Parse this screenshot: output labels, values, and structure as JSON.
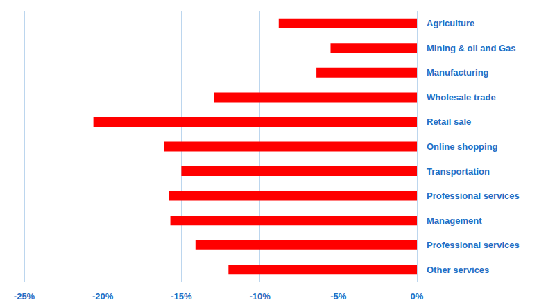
{
  "chart_data": {
    "type": "bar",
    "orientation": "horizontal",
    "categories": [
      "Agriculture",
      "Mining & oil and Gas",
      "Manufacturing",
      "Wholesale trade",
      "Retail sale",
      "Online shopping",
      "Transportation",
      "Professional services",
      "Management",
      "Professional services",
      "Other services"
    ],
    "values": [
      -8.8,
      -5.5,
      -6.4,
      -12.9,
      -20.6,
      -16.1,
      -15.0,
      -15.8,
      -15.7,
      -14.1,
      -12.0
    ],
    "color": "#ff0000",
    "xlim": [
      -25,
      0
    ],
    "xticks": [
      {
        "value": -25,
        "label": "-25%"
      },
      {
        "value": -20,
        "label": "-20%"
      },
      {
        "value": -15,
        "label": "-15%"
      },
      {
        "value": -10,
        "label": "-10%"
      },
      {
        "value": -5,
        "label": "-5%"
      },
      {
        "value": 0,
        "label": "0%"
      }
    ],
    "grid": true
  }
}
